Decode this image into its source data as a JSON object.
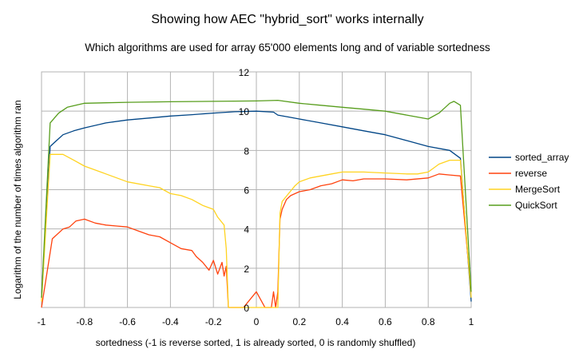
{
  "chart_data": {
    "type": "line",
    "title": "Showing how AEC \"hybrid_sort\" works internally",
    "subtitle": "Which algorithms are used for array 65'000 elements long and of variable sortedness",
    "xlabel": "sortedness (-1 is reverse sorted, 1 is already sorted, 0 is randomly shuffled)",
    "ylabel": "Logarithm of the number of times algorithm ran",
    "xlim": [
      -1,
      1
    ],
    "ylim": [
      0,
      12
    ],
    "x_ticks": [
      "-1",
      "-0.8",
      "-0.6",
      "-0.4",
      "-0.2",
      "0",
      "0.2",
      "0.4",
      "0.6",
      "0.8",
      "1"
    ],
    "y_ticks": [
      "0",
      "2",
      "4",
      "6",
      "8",
      "10",
      "12"
    ],
    "grid": true,
    "legend_position": "right",
    "series": [
      {
        "name": "sorted_array",
        "color": "#004586",
        "points": [
          [
            -1,
            0.5
          ],
          [
            -0.96,
            8.2
          ],
          [
            -0.93,
            8.5
          ],
          [
            -0.9,
            8.8
          ],
          [
            -0.85,
            9.0
          ],
          [
            -0.8,
            9.15
          ],
          [
            -0.7,
            9.4
          ],
          [
            -0.6,
            9.55
          ],
          [
            -0.5,
            9.65
          ],
          [
            -0.4,
            9.75
          ],
          [
            -0.3,
            9.82
          ],
          [
            -0.2,
            9.9
          ],
          [
            -0.1,
            9.97
          ],
          [
            0,
            10.0
          ],
          [
            0.08,
            9.95
          ],
          [
            0.1,
            9.8
          ],
          [
            0.15,
            9.7
          ],
          [
            0.2,
            9.6
          ],
          [
            0.3,
            9.4
          ],
          [
            0.4,
            9.2
          ],
          [
            0.5,
            9.0
          ],
          [
            0.6,
            8.8
          ],
          [
            0.7,
            8.5
          ],
          [
            0.8,
            8.2
          ],
          [
            0.9,
            8.0
          ],
          [
            0.95,
            7.6
          ],
          [
            1,
            0.3
          ]
        ]
      },
      {
        "name": "reverse",
        "color": "#ff420e",
        "points": [
          [
            -1,
            0
          ],
          [
            -0.95,
            3.5
          ],
          [
            -0.9,
            4.0
          ],
          [
            -0.87,
            4.1
          ],
          [
            -0.84,
            4.4
          ],
          [
            -0.8,
            4.5
          ],
          [
            -0.75,
            4.3
          ],
          [
            -0.7,
            4.2
          ],
          [
            -0.65,
            4.15
          ],
          [
            -0.6,
            4.1
          ],
          [
            -0.55,
            3.9
          ],
          [
            -0.5,
            3.7
          ],
          [
            -0.45,
            3.6
          ],
          [
            -0.4,
            3.3
          ],
          [
            -0.35,
            3.0
          ],
          [
            -0.3,
            2.9
          ],
          [
            -0.28,
            2.6
          ],
          [
            -0.25,
            2.3
          ],
          [
            -0.22,
            1.9
          ],
          [
            -0.2,
            2.4
          ],
          [
            -0.18,
            1.7
          ],
          [
            -0.16,
            2.3
          ],
          [
            -0.15,
            1.6
          ],
          [
            -0.14,
            2.1
          ],
          [
            -0.13,
            0
          ],
          [
            -0.12,
            0
          ],
          [
            -0.1,
            0
          ],
          [
            -0.06,
            0
          ],
          [
            0,
            0.8
          ],
          [
            0.04,
            0
          ],
          [
            0.07,
            0
          ],
          [
            0.08,
            0.8
          ],
          [
            0.09,
            0
          ],
          [
            0.1,
            0.8
          ],
          [
            0.11,
            4.5
          ],
          [
            0.12,
            5.0
          ],
          [
            0.14,
            5.5
          ],
          [
            0.16,
            5.7
          ],
          [
            0.2,
            5.9
          ],
          [
            0.25,
            6.0
          ],
          [
            0.3,
            6.2
          ],
          [
            0.35,
            6.3
          ],
          [
            0.4,
            6.5
          ],
          [
            0.45,
            6.45
          ],
          [
            0.5,
            6.55
          ],
          [
            0.6,
            6.55
          ],
          [
            0.7,
            6.5
          ],
          [
            0.8,
            6.6
          ],
          [
            0.85,
            6.8
          ],
          [
            0.9,
            6.75
          ],
          [
            0.95,
            6.7
          ],
          [
            1,
            0.8
          ]
        ]
      },
      {
        "name": "MergeSort",
        "color": "#ffd320",
        "points": [
          [
            -1,
            0.3
          ],
          [
            -0.96,
            7.8
          ],
          [
            -0.9,
            7.8
          ],
          [
            -0.85,
            7.5
          ],
          [
            -0.8,
            7.2
          ],
          [
            -0.7,
            6.8
          ],
          [
            -0.6,
            6.4
          ],
          [
            -0.5,
            6.2
          ],
          [
            -0.45,
            6.1
          ],
          [
            -0.4,
            5.8
          ],
          [
            -0.35,
            5.7
          ],
          [
            -0.3,
            5.5
          ],
          [
            -0.25,
            5.2
          ],
          [
            -0.2,
            5.0
          ],
          [
            -0.18,
            4.6
          ],
          [
            -0.15,
            4.2
          ],
          [
            -0.14,
            3.0
          ],
          [
            -0.13,
            0
          ],
          [
            -0.1,
            0
          ],
          [
            0,
            0
          ],
          [
            0.1,
            0
          ],
          [
            0.11,
            4.8
          ],
          [
            0.12,
            5.4
          ],
          [
            0.15,
            5.8
          ],
          [
            0.18,
            6.2
          ],
          [
            0.2,
            6.4
          ],
          [
            0.25,
            6.6
          ],
          [
            0.3,
            6.7
          ],
          [
            0.35,
            6.8
          ],
          [
            0.4,
            6.9
          ],
          [
            0.5,
            6.9
          ],
          [
            0.6,
            6.85
          ],
          [
            0.7,
            6.8
          ],
          [
            0.75,
            6.8
          ],
          [
            0.8,
            6.9
          ],
          [
            0.85,
            7.3
          ],
          [
            0.9,
            7.5
          ],
          [
            0.95,
            7.5
          ],
          [
            1,
            0.5
          ]
        ]
      },
      {
        "name": "QuickSort",
        "color": "#579d1c",
        "points": [
          [
            -1,
            0.5
          ],
          [
            -0.96,
            9.4
          ],
          [
            -0.92,
            9.9
          ],
          [
            -0.88,
            10.2
          ],
          [
            -0.84,
            10.3
          ],
          [
            -0.8,
            10.4
          ],
          [
            -0.6,
            10.45
          ],
          [
            -0.4,
            10.48
          ],
          [
            -0.2,
            10.5
          ],
          [
            0,
            10.52
          ],
          [
            0.1,
            10.55
          ],
          [
            0.2,
            10.4
          ],
          [
            0.3,
            10.3
          ],
          [
            0.4,
            10.2
          ],
          [
            0.5,
            10.1
          ],
          [
            0.6,
            10.0
          ],
          [
            0.7,
            9.8
          ],
          [
            0.8,
            9.6
          ],
          [
            0.85,
            9.9
          ],
          [
            0.88,
            10.2
          ],
          [
            0.9,
            10.4
          ],
          [
            0.92,
            10.5
          ],
          [
            0.95,
            10.3
          ],
          [
            1,
            0.8
          ]
        ]
      }
    ]
  }
}
